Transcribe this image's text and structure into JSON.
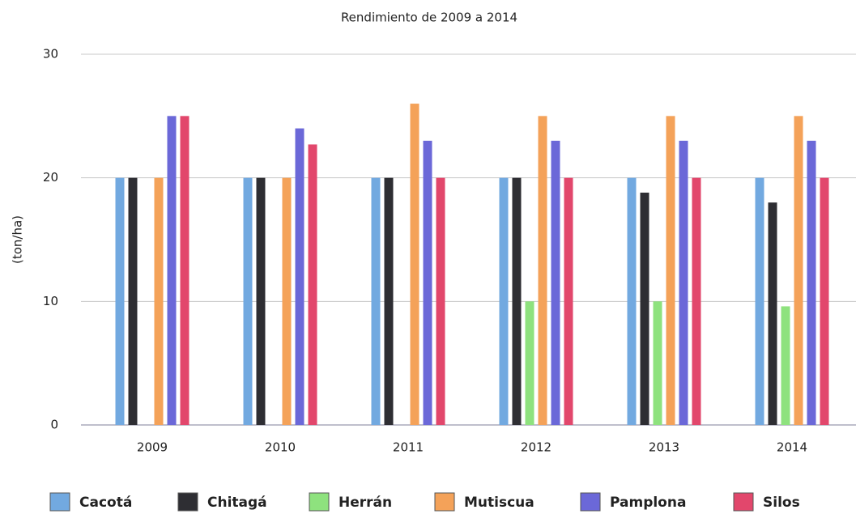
{
  "chart_data": {
    "type": "bar",
    "title": "Rendimiento de 2009 a 2014",
    "y_label": "(ton/ha)",
    "categories": [
      "2009",
      "2010",
      "2011",
      "2012",
      "2013",
      "2014"
    ],
    "series": [
      {
        "name": "Cacotá",
        "color": "#72a9e0",
        "values": [
          20,
          20,
          20,
          20,
          20,
          20
        ]
      },
      {
        "name": "Chitagá",
        "color": "#2e2e33",
        "values": [
          20,
          20,
          20,
          20,
          18.8,
          18
        ]
      },
      {
        "name": "Herrán",
        "color": "#8ee27e",
        "values": [
          null,
          null,
          null,
          10,
          10,
          9.6
        ]
      },
      {
        "name": "Mutiscua",
        "color": "#f4a259",
        "values": [
          20,
          20,
          26,
          25,
          25,
          25
        ]
      },
      {
        "name": "Pamplona",
        "color": "#6b68d8",
        "values": [
          25,
          24,
          23,
          23,
          23,
          23
        ]
      },
      {
        "name": "Silos",
        "color": "#e2476c",
        "values": [
          25,
          22.7,
          20,
          20,
          20,
          20
        ]
      }
    ],
    "ylim": [
      0,
      30
    ],
    "yticks": [
      0,
      10,
      20,
      30
    ],
    "grid": true,
    "legend": "bottom"
  }
}
